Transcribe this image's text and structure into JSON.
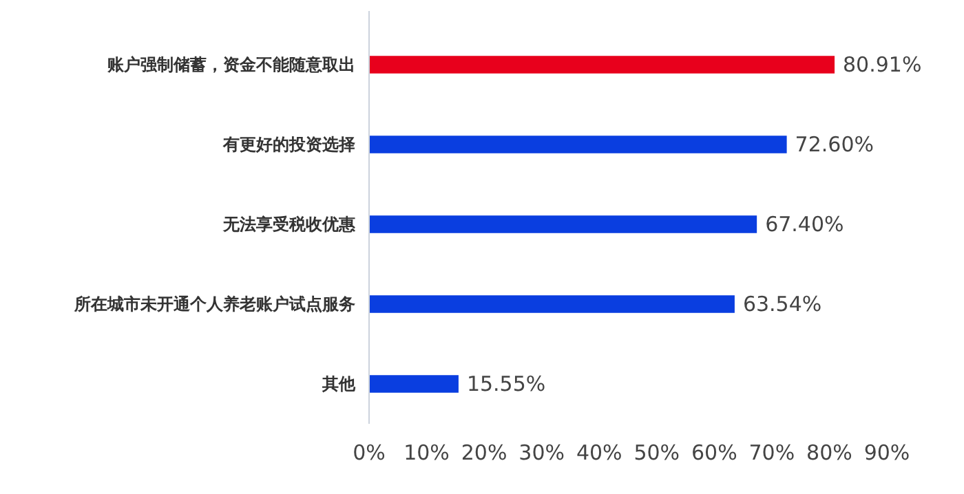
{
  "chart_data": {
    "type": "bar",
    "orientation": "horizontal",
    "categories": [
      "账户强制储蓄，资金不能随意取出",
      "有更好的投资选择",
      "无法享受税收优惠",
      "所在城市未开通个人养老账户试点服务",
      "其他"
    ],
    "values": [
      80.91,
      72.6,
      67.4,
      63.54,
      15.55
    ],
    "colors": [
      "#e8001c",
      "#0a3ee0",
      "#0a3ee0",
      "#0a3ee0",
      "#0a3ee0"
    ],
    "value_labels": [
      "80.91%",
      "72.60%",
      "67.40%",
      "63.54%",
      "15.55%"
    ],
    "xlim": [
      0,
      90
    ],
    "xticks": [
      {
        "value": 0,
        "label": "0%"
      },
      {
        "value": 10,
        "label": "10%"
      },
      {
        "value": 20,
        "label": "20%"
      },
      {
        "value": 30,
        "label": "30%"
      },
      {
        "value": 40,
        "label": "40%"
      },
      {
        "value": 50,
        "label": "50%"
      },
      {
        "value": 60,
        "label": "60%"
      },
      {
        "value": 70,
        "label": "70%"
      },
      {
        "value": 80,
        "label": "80%"
      },
      {
        "value": 90,
        "label": "90%"
      }
    ],
    "grid": false
  }
}
